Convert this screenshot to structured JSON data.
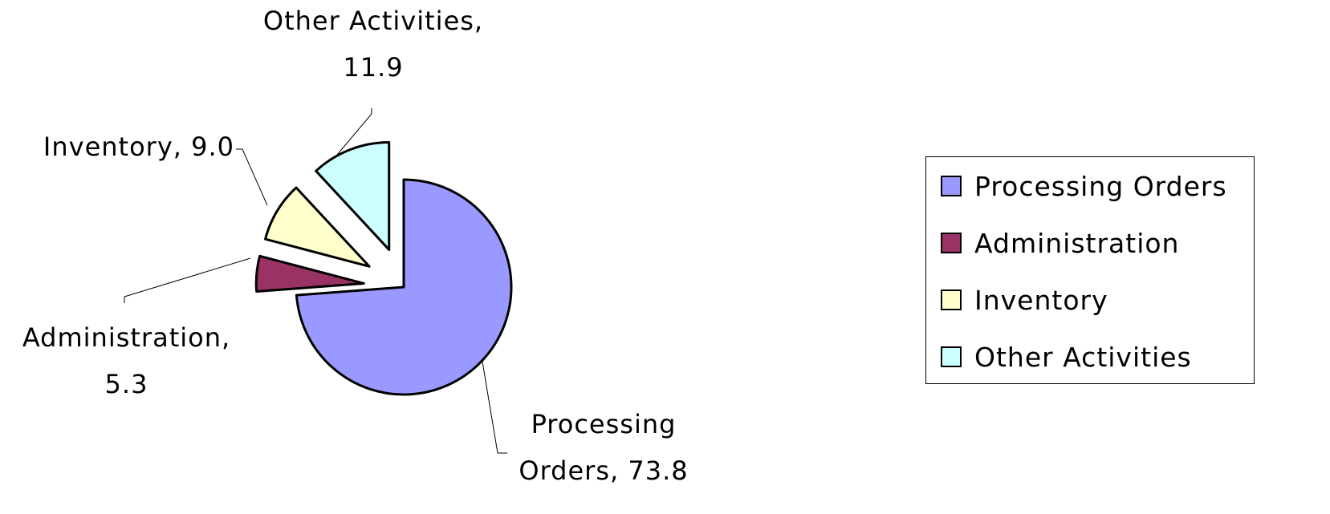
{
  "chart_data": {
    "type": "pie",
    "categories": [
      "Processing Orders",
      "Administration",
      "Inventory",
      "Other Activities"
    ],
    "values": [
      73.8,
      5.3,
      9.0,
      11.9
    ],
    "value_labels": [
      "Processing Orders, 73.8",
      "Administration, 5.3",
      "Inventory, 9.0",
      "Other Activities, 11.9"
    ],
    "colors": [
      "#9999ff",
      "#993366",
      "#ffffcc",
      "#ccffff"
    ],
    "exploded": [
      false,
      true,
      true,
      true
    ],
    "legend": "right"
  }
}
